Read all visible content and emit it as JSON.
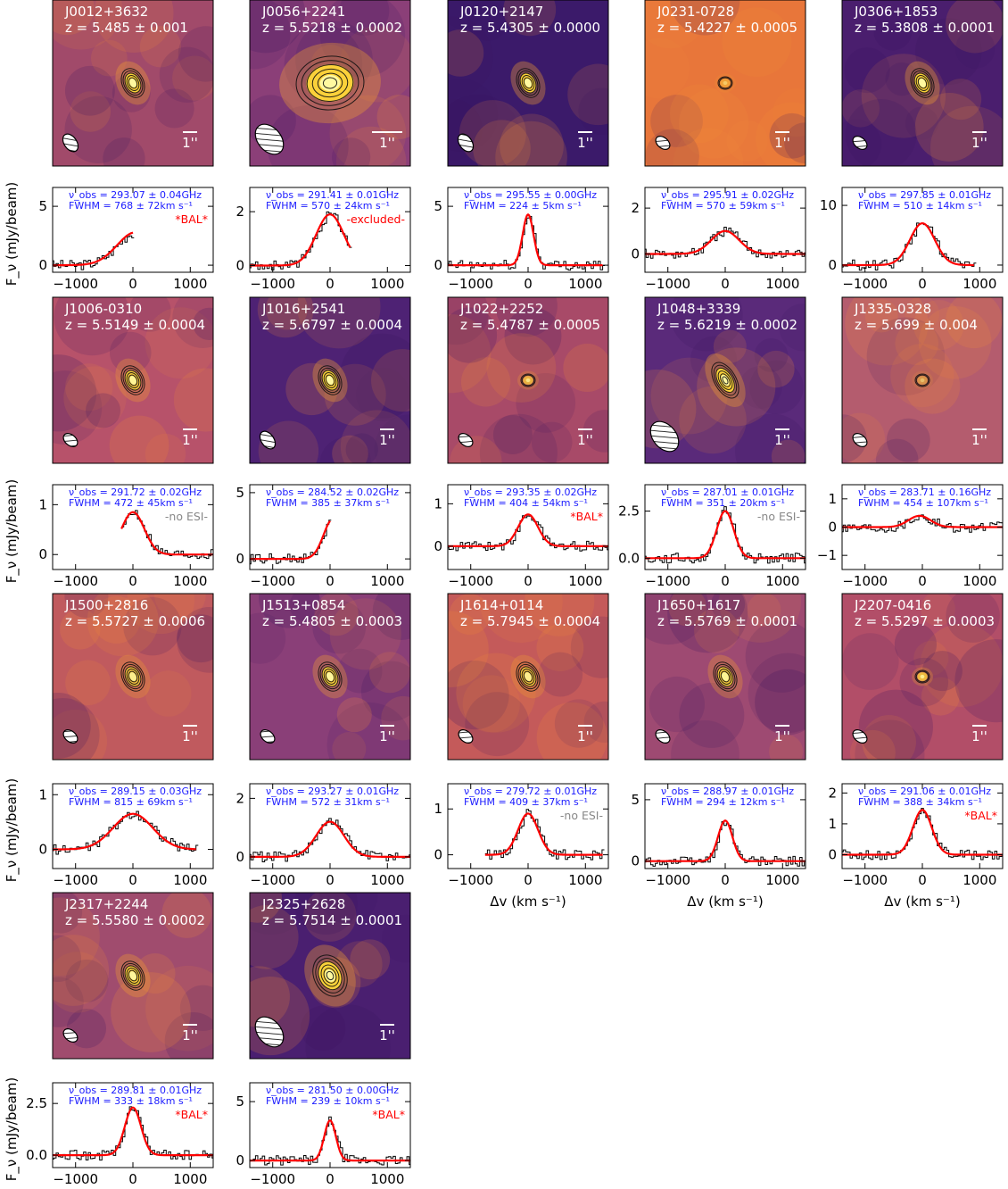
{
  "axis_labels": {
    "ylabel": "F_ν (mJy/beam)",
    "xlabel": "Δv (km s⁻¹)",
    "scale_bar": "1''",
    "x_ticks": [
      "−1000",
      "0",
      "1000"
    ]
  },
  "chart_data": [
    {
      "type": "line",
      "name": "J0012+3632",
      "z": "z = 5.485 ± 0.001",
      "nu": "ν_obs = 293.07 ± 0.04GHz",
      "fwhm": "FWHM = 768 ± 72km s⁻¹",
      "note": "*BAL*",
      "note_color": "#ff0000",
      "yticks": [
        0,
        5
      ],
      "ylim": [
        -0.6,
        6.6
      ],
      "xlim": [
        -1400,
        1400
      ],
      "xrange": [
        -1500,
        0
      ],
      "peak": 2.8,
      "center": 50,
      "sigma": 326,
      "bg": "#a14a6a",
      "hot": 1.0,
      "blob": "small",
      "beam": "ellipse"
    },
    {
      "type": "line",
      "name": "J0056+2241",
      "z": "z = 5.5218 ± 0.0002",
      "nu": "ν_obs = 291.41 ± 0.01GHz",
      "fwhm": "FWHM = 570 ± 24km s⁻¹",
      "note": "-excluded-",
      "note_color": "#ff0000",
      "yticks": [
        0,
        2
      ],
      "ylim": [
        -0.25,
        2.9
      ],
      "xlim": [
        -1400,
        1400
      ],
      "xrange": [
        -1500,
        350
      ],
      "peak": 1.9,
      "center": 0,
      "sigma": 242,
      "bg": "#8b3f78",
      "hot": 1.0,
      "blob": "large",
      "beam": "large"
    },
    {
      "type": "line",
      "name": "J0120+2147",
      "z": "z = 5.4305 ± 0.0000",
      "nu": "ν_obs = 295.55 ± 0.00GHz",
      "fwhm": "FWHM = 224 ± 5km s⁻¹",
      "note": "",
      "note_color": "#ff0000",
      "yticks": [
        0,
        5
      ],
      "ylim": [
        -0.6,
        6.6
      ],
      "xlim": [
        -1400,
        1400
      ],
      "xrange": [
        -1500,
        1300
      ],
      "peak": 4.3,
      "center": 0,
      "sigma": 95,
      "bg": "#3b1a6a",
      "hot": 1.0,
      "blob": "small",
      "beam": "ellipse"
    },
    {
      "type": "line",
      "name": "J0231-0728",
      "z": "z = 5.4227 ± 0.0005",
      "nu": "ν_obs = 295.91 ± 0.02GHz",
      "fwhm": "FWHM = 570 ± 59km s⁻¹",
      "note": "",
      "note_color": "#ff0000",
      "yticks": [
        0,
        2
      ],
      "ylim": [
        -0.8,
        2.9
      ],
      "xlim": [
        -1400,
        1400
      ],
      "xrange": [
        -1500,
        1400
      ],
      "peak": 1.0,
      "center": 0,
      "sigma": 242,
      "bg": "#e8763a",
      "hot": 0.45,
      "blob": "faint",
      "beam": "small"
    },
    {
      "type": "line",
      "name": "J0306+1853",
      "z": "z = 5.3808 ± 0.0001",
      "nu": "ν_obs = 297.85 ± 0.01GHz",
      "fwhm": "FWHM = 510 ± 14km s⁻¹",
      "note": "",
      "note_color": "#ff0000",
      "yticks": [
        0,
        10
      ],
      "ylim": [
        -1.2,
        13
      ],
      "xlim": [
        -1400,
        1400
      ],
      "xrange": [
        -1500,
        900
      ],
      "peak": 7.0,
      "center": 0,
      "sigma": 217,
      "bg": "#4a1e6e",
      "hot": 1.0,
      "blob": "small",
      "beam": "small"
    },
    {
      "type": "line",
      "name": "J1006-0310",
      "z": "z = 5.5149 ± 0.0004",
      "nu": "ν_obs = 291.72 ± 0.02GHz",
      "fwhm": "FWHM = 472 ± 45km s⁻¹",
      "note": "-no ESI-",
      "note_color": "#888888",
      "yticks": [
        0,
        1
      ],
      "ylim": [
        -0.3,
        1.4
      ],
      "xlim": [
        -1400,
        1400
      ],
      "xrange": [
        -200,
        1400
      ],
      "peak": 0.85,
      "center": 0,
      "sigma": 200,
      "bg": "#b7526a",
      "hot": 0.9,
      "blob": "small",
      "beam": "small"
    },
    {
      "type": "line",
      "name": "J1016+2541",
      "z": "z = 5.6797 ± 0.0004",
      "nu": "ν_obs = 284.52 ± 0.02GHz",
      "fwhm": "FWHM = 385 ± 37km s⁻¹",
      "note": "",
      "note_color": "#ff0000",
      "yticks": [
        0,
        5
      ],
      "ylim": [
        -0.8,
        5.6
      ],
      "xlim": [
        -1400,
        1400
      ],
      "xrange": [
        -1500,
        0
      ],
      "peak": 3.0,
      "center": 50,
      "sigma": 163,
      "bg": "#4e2274",
      "hot": 1.0,
      "blob": "small",
      "beam": "ellipse"
    },
    {
      "type": "line",
      "name": "J1022+2252",
      "z": "z = 5.4787 ± 0.0005",
      "nu": "ν_obs = 293.35 ± 0.02GHz",
      "fwhm": "FWHM = 404 ± 54km s⁻¹",
      "note": "*BAL*",
      "note_color": "#ff0000",
      "yticks": [
        0,
        1
      ],
      "ylim": [
        -0.55,
        1.45
      ],
      "xlim": [
        -1400,
        1400
      ],
      "xrange": [
        -1500,
        1400
      ],
      "peak": 0.75,
      "center": 0,
      "sigma": 172,
      "bg": "#a84a68",
      "hot": 0.7,
      "blob": "faint",
      "beam": "small"
    },
    {
      "type": "line",
      "name": "J1048+3339",
      "z": "z = 5.6219 ± 0.0002",
      "nu": "ν_obs = 287.01 ± 0.01GHz",
      "fwhm": "FWHM = 351 ± 20km s⁻¹",
      "note": "-no ESI-",
      "note_color": "#888888",
      "yticks": [
        0,
        2.5
      ],
      "ylim": [
        -0.6,
        3.9
      ],
      "xlim": [
        -1400,
        1400
      ],
      "xrange": [
        -1500,
        1400
      ],
      "peak": 2.5,
      "center": 0,
      "sigma": 149,
      "bg": "#5a2a7a",
      "hot": 1.0,
      "blob": "elongated",
      "beam": "large"
    },
    {
      "type": "line",
      "name": "J1335-0328",
      "z": "z = 5.699 ± 0.004",
      "nu": "ν_obs = 283.71 ± 0.16GHz",
      "fwhm": "FWHM = 454 ± 107km s⁻¹",
      "note": "",
      "note_color": "#ff0000",
      "yticks": [
        -1,
        0,
        1
      ],
      "ylim": [
        -1.5,
        1.5
      ],
      "xlim": [
        -1400,
        1400
      ],
      "xrange": [
        -1500,
        1400
      ],
      "peak": 0.4,
      "center": -50,
      "sigma": 193,
      "bg": "#b45c6e",
      "hot": 0.4,
      "blob": "faint",
      "beam": "small"
    },
    {
      "type": "line",
      "name": "J1500+2816",
      "z": "z = 5.5727 ± 0.0006",
      "nu": "ν_obs = 289.15 ± 0.03GHz",
      "fwhm": "FWHM = 815 ± 69km s⁻¹",
      "note": "",
      "note_color": "#ff0000",
      "yticks": [
        0,
        1
      ],
      "ylim": [
        -0.35,
        1.2
      ],
      "xlim": [
        -1400,
        1400
      ],
      "xrange": [
        -1500,
        1100
      ],
      "peak": 0.65,
      "center": 0,
      "sigma": 346,
      "bg": "#c05a5e",
      "hot": 0.8,
      "blob": "small",
      "beam": "small"
    },
    {
      "type": "line",
      "name": "J1513+0854",
      "z": "z = 5.4805 ± 0.0003",
      "nu": "ν_obs = 293.27 ± 0.01GHz",
      "fwhm": "FWHM = 572 ± 31km s⁻¹",
      "note": "",
      "note_color": "#ff0000",
      "yticks": [
        0,
        2
      ],
      "ylim": [
        -0.4,
        2.5
      ],
      "xlim": [
        -1400,
        1400
      ],
      "xrange": [
        -1500,
        1400
      ],
      "peak": 1.2,
      "center": 0,
      "sigma": 243,
      "bg": "#8a3f78",
      "hot": 0.95,
      "blob": "small",
      "beam": "small"
    },
    {
      "type": "line",
      "name": "J1614+0114",
      "z": "z = 5.7945 ± 0.0004",
      "nu": "ν_obs = 279.72 ± 0.01GHz",
      "fwhm": "FWHM = 409 ± 37km s⁻¹",
      "note": "-no ESI-",
      "note_color": "#888888",
      "yticks": [
        0,
        1
      ],
      "ylim": [
        -0.3,
        1.55
      ],
      "xlim": [
        -1400,
        1400
      ],
      "xrange": [
        -750,
        1300
      ],
      "peak": 0.9,
      "center": 0,
      "sigma": 174,
      "bg": "#c45a5a",
      "hot": 0.8,
      "blob": "small",
      "beam": "small"
    },
    {
      "type": "line",
      "name": "J1650+1617",
      "z": "z = 5.5769 ± 0.0001",
      "nu": "ν_obs = 288.97 ± 0.01GHz",
      "fwhm": "FWHM = 294 ± 12km s⁻¹",
      "note": "",
      "note_color": "#ff0000",
      "yticks": [
        0,
        5
      ],
      "ylim": [
        -0.6,
        6.3
      ],
      "xlim": [
        -1400,
        1400
      ],
      "xrange": [
        -1500,
        1400
      ],
      "peak": 3.3,
      "center": 0,
      "sigma": 125,
      "bg": "#9e4a72",
      "hot": 0.9,
      "blob": "small",
      "beam": "small"
    },
    {
      "type": "line",
      "name": "J2207-0416",
      "z": "z = 5.5297 ± 0.0003",
      "nu": "ν_obs = 291.06 ± 0.01GHz",
      "fwhm": "FWHM = 388 ± 34km s⁻¹",
      "note": "*BAL*",
      "note_color": "#ff0000",
      "yticks": [
        0,
        1,
        2
      ],
      "ylim": [
        -0.45,
        2.3
      ],
      "xlim": [
        -1400,
        1400
      ],
      "xrange": [
        -1500,
        1400
      ],
      "peak": 1.45,
      "center": 0,
      "sigma": 165,
      "bg": "#b24e68",
      "hot": 0.8,
      "blob": "faint",
      "beam": "small"
    },
    {
      "type": "line",
      "name": "J2317+2244",
      "z": "z = 5.5580 ± 0.0002",
      "nu": "ν_obs = 289.81 ± 0.01GHz",
      "fwhm": "FWHM = 333 ± 18km s⁻¹",
      "note": "*BAL*",
      "note_color": "#ff0000",
      "yticks": [
        0,
        2.5
      ],
      "ylim": [
        -0.6,
        3.5
      ],
      "xlim": [
        -1400,
        1400
      ],
      "xrange": [
        -1500,
        1400
      ],
      "peak": 2.3,
      "center": 0,
      "sigma": 141,
      "bg": "#a04c6e",
      "hot": 0.95,
      "blob": "small",
      "beam": "small"
    },
    {
      "type": "line",
      "name": "J2325+2628",
      "z": "z = 5.7514 ± 0.0001",
      "nu": "ν_obs = 281.50 ± 0.00GHz",
      "fwhm": "FWHM = 239 ± 10km s⁻¹",
      "note": "*BAL*",
      "note_color": "#ff0000",
      "yticks": [
        0,
        5
      ],
      "ylim": [
        -0.6,
        6.6
      ],
      "xlim": [
        -1400,
        1400
      ],
      "xrange": [
        -1500,
        1400
      ],
      "peak": 3.4,
      "center": 0,
      "sigma": 101,
      "bg": "#4a1f70",
      "hot": 1.0,
      "blob": "large2",
      "beam": "large"
    }
  ]
}
